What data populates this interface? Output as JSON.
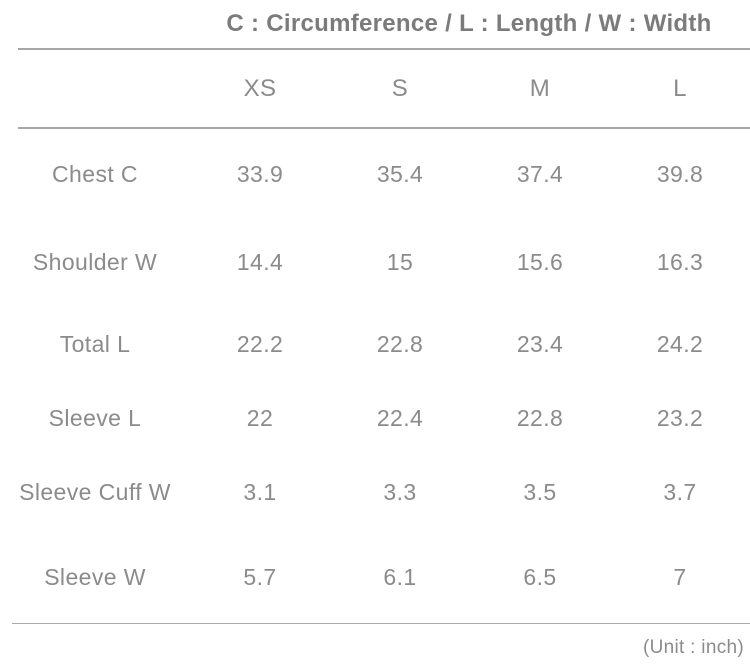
{
  "chart_data": {
    "type": "table",
    "title": "C : Circumference / L : Length / W : Width",
    "columns": [
      "XS",
      "S",
      "M",
      "L"
    ],
    "rows": [
      {
        "label": "Chest C",
        "values": [
          33.9,
          35.4,
          37.4,
          39.8
        ]
      },
      {
        "label": "Shoulder W",
        "values": [
          14.4,
          15,
          15.6,
          16.3
        ]
      },
      {
        "label": "Total L",
        "values": [
          22.2,
          22.8,
          23.4,
          24.2
        ]
      },
      {
        "label": "Sleeve L",
        "values": [
          22,
          22.4,
          22.8,
          23.2
        ]
      },
      {
        "label": "Sleeve Cuff W",
        "values": [
          3.1,
          3.3,
          3.5,
          3.7
        ]
      },
      {
        "label": "Sleeve W",
        "values": [
          5.7,
          6.1,
          6.5,
          7
        ]
      }
    ],
    "unit": "inch",
    "unit_note": "(Unit : inch)",
    "layout": "grid off, no cell borders, horizontal rules above header, below header, above footer"
  },
  "colors": {
    "background": "#ffffff",
    "title_text": "#7b7b7b",
    "body_text": "#8b8b8b",
    "rule": "#a6a6a6"
  }
}
